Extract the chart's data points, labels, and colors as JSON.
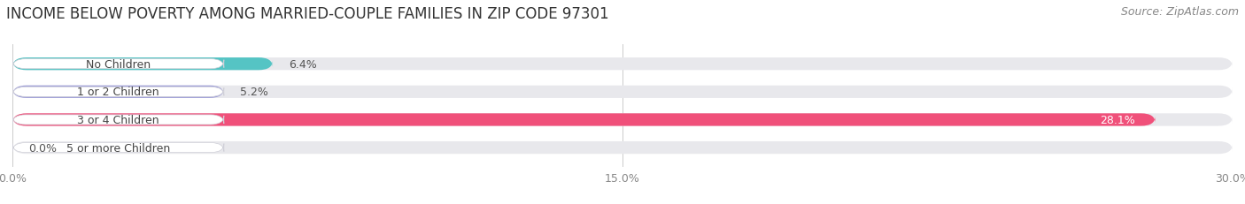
{
  "title": "INCOME BELOW POVERTY AMONG MARRIED-COUPLE FAMILIES IN ZIP CODE 97301",
  "source": "Source: ZipAtlas.com",
  "categories": [
    "No Children",
    "1 or 2 Children",
    "3 or 4 Children",
    "5 or more Children"
  ],
  "values": [
    6.4,
    5.2,
    28.1,
    0.0
  ],
  "bar_colors": [
    "#55c4c4",
    "#a0a0d8",
    "#f0507a",
    "#f5c896"
  ],
  "bar_bg_color": "#e8e8ec",
  "xlim": [
    0,
    30.0
  ],
  "xticks": [
    0.0,
    15.0,
    30.0
  ],
  "xtick_labels": [
    "0.0%",
    "15.0%",
    "30.0%"
  ],
  "title_fontsize": 12,
  "source_fontsize": 9,
  "bar_label_fontsize": 9,
  "category_fontsize": 9,
  "bar_height": 0.45,
  "figsize": [
    14.06,
    2.32
  ],
  "dpi": 100
}
